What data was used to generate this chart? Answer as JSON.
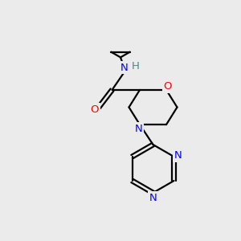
{
  "background_color": "#ebebeb",
  "bond_color": "#000000",
  "atom_colors": {
    "N": "#0000ff",
    "O": "#ff0000",
    "H": "#4a8888",
    "C": "#000000"
  },
  "figsize": [
    3.0,
    3.0
  ],
  "dpi": 100
}
